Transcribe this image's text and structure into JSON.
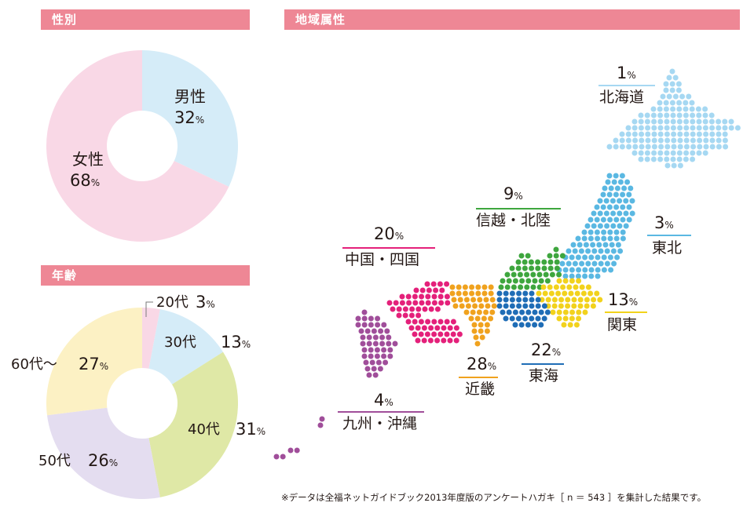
{
  "headers": {
    "gender": "性別",
    "region": "地域属性",
    "age": "年齢"
  },
  "chart_data": [
    {
      "type": "pie",
      "variant": "donut",
      "title": "性別",
      "slices": [
        {
          "label": "男性",
          "value": 32,
          "unit": "%",
          "color": "#d5ecf8"
        },
        {
          "label": "女性",
          "value": 68,
          "unit": "%",
          "color": "#f9d8e6"
        }
      ]
    },
    {
      "type": "pie",
      "variant": "donut",
      "title": "年齢",
      "slices": [
        {
          "label": "20代",
          "value": 3,
          "unit": "%",
          "color": "#f9d8e6"
        },
        {
          "label": "30代",
          "value": 13,
          "unit": "%",
          "color": "#d5ecf8"
        },
        {
          "label": "40代",
          "value": 31,
          "unit": "%",
          "color": "#dfe8a6"
        },
        {
          "label": "50代",
          "value": 26,
          "unit": "%",
          "color": "#e4ddf0"
        },
        {
          "label": "60代〜",
          "value": 27,
          "unit": "%",
          "color": "#fcf1c4"
        }
      ]
    },
    {
      "type": "map",
      "title": "地域属性",
      "regions": [
        {
          "label": "北海道",
          "value": 1,
          "unit": "%",
          "color": "#a6d8f2"
        },
        {
          "label": "東北",
          "value": 3,
          "unit": "%",
          "color": "#5ab8e2"
        },
        {
          "label": "関東",
          "value": 13,
          "unit": "%",
          "color": "#f2d21c"
        },
        {
          "label": "信越・北陸",
          "value": 9,
          "unit": "%",
          "color": "#3ea63e"
        },
        {
          "label": "東海",
          "value": 22,
          "unit": "%",
          "color": "#1f6db6"
        },
        {
          "label": "近畿",
          "value": 28,
          "unit": "%",
          "color": "#f0a21e"
        },
        {
          "label": "中国・四国",
          "value": 20,
          "unit": "%",
          "color": "#e4207a"
        },
        {
          "label": "九州・沖縄",
          "value": 4,
          "unit": "%",
          "color": "#a04e9a"
        }
      ]
    }
  ],
  "footnote": "※データは全福ネットガイドブック2013年度版のアンケートハガキ［ n ＝ 543 ］を集計した結果です。"
}
